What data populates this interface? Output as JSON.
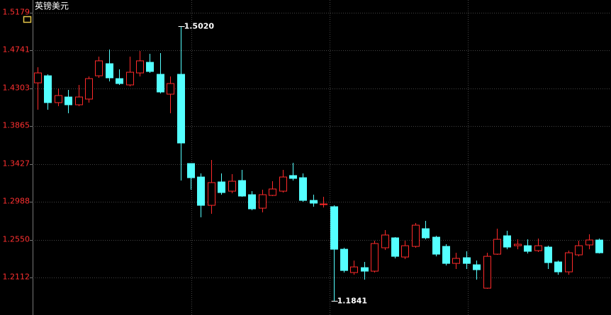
{
  "chart_data": {
    "type": "candlestick",
    "title": "英镑美元",
    "ylim": [
      1.1677,
      1.5327
    ],
    "yticks": [
      1.5179,
      1.4741,
      1.4303,
      1.3865,
      1.3427,
      1.2988,
      {
        "value": 1.255,
        "label": "1.2550"
      },
      1.2112
    ],
    "grid": true,
    "up_color": "#ff2a2a",
    "down_color": "#54ffff",
    "open": [
      1.4367,
      1.4449,
      1.4138,
      1.4203,
      1.4113,
      1.4179,
      1.4449,
      1.4589,
      1.4416,
      1.4343,
      1.4482,
      1.4605,
      1.4466,
      1.4236,
      1.4466,
      1.3432,
      1.3276,
      1.2948,
      1.3219,
      1.3112,
      1.3235,
      1.3071,
      1.2915,
      1.3063,
      1.3112,
      1.3293,
      1.3268,
      1.3005,
      1.2956,
      1.2932,
      1.2439,
      1.2169,
      1.2226,
      1.2185,
      1.2456,
      1.2571,
      1.2349,
      1.2472,
      1.2677,
      1.2579,
      1.2472,
      1.2275,
      1.2341,
      1.2259,
      1.1988,
      1.2382,
      1.2595,
      1.248,
      1.248,
      1.2423,
      1.2464,
      1.2292,
      1.2177,
      1.2374,
      1.2489,
      1.2546
    ],
    "high": [
      1.4548,
      1.4466,
      1.4302,
      1.4285,
      1.4343,
      1.4441,
      1.4671,
      1.4753,
      1.4523,
      1.4671,
      1.4736,
      1.4704,
      1.4712,
      1.4441,
      1.502,
      1.3432,
      1.3317,
      1.3473,
      1.3317,
      1.3309,
      1.3358,
      1.3112,
      1.3129,
      1.3227,
      1.3358,
      1.344,
      1.3317,
      1.3071,
      1.3047,
      1.2948,
      1.2456,
      1.2308,
      1.2292,
      1.2538,
      1.2661,
      1.2579,
      1.2538,
      1.2743,
      1.2768,
      1.2595,
      1.2497,
      1.2398,
      1.2415,
      1.2308,
      1.2398,
      1.2677,
      1.2653,
      1.2554,
      1.2554,
      1.2563,
      1.248,
      1.2308,
      1.2423,
      1.2538,
      1.2612,
      1.2563
    ],
    "low": [
      1.4056,
      1.4056,
      1.4097,
      1.4015,
      1.4097,
      1.4138,
      1.4425,
      1.4384,
      1.4343,
      1.4326,
      1.4441,
      1.4482,
      1.4244,
      1.4015,
      1.3235,
      1.3129,
      1.2809,
      1.285,
      1.3071,
      1.3088,
      1.3047,
      1.2891,
      1.2866,
      1.3055,
      1.3096,
      1.3235,
      1.2989,
      1.2932,
      1.2923,
      1.1841,
      1.2169,
      1.2144,
      1.2087,
      1.2169,
      1.2431,
      1.2333,
      1.2325,
      1.2456,
      1.2554,
      1.2357,
      1.2251,
      1.221,
      1.221,
      1.2087,
      1.198,
      1.2374,
      1.2439,
      1.2439,
      1.239,
      1.2407,
      1.221,
      1.2144,
      1.2144,
      1.2357,
      1.2439,
      1.239
    ],
    "close": [
      1.4482,
      1.4138,
      1.422,
      1.4113,
      1.4203,
      1.4416,
      1.4622,
      1.4425,
      1.4359,
      1.449,
      1.4622,
      1.4499,
      1.4261,
      1.4359,
      1.367,
      1.3268,
      1.2948,
      1.3211,
      1.3096,
      1.3227,
      1.3055,
      1.2907,
      1.3071,
      1.3137,
      1.3276,
      1.326,
      1.3005,
      1.2973,
      1.2964,
      1.2439,
      1.2193,
      1.2234,
      1.2185,
      1.2505,
      1.2604,
      1.2357,
      1.248,
      1.2718,
      1.2571,
      1.2382,
      1.2275,
      1.2333,
      1.2275,
      1.2202,
      1.2357,
      1.2554,
      1.2464,
      1.2497,
      1.2415,
      1.248,
      1.2284,
      1.2177,
      1.2398,
      1.248,
      1.2546,
      1.2398
    ],
    "annotations": [
      {
        "value": 1.502,
        "label": "1.5020"
      },
      {
        "value": 1.1841,
        "label": "1.1841"
      }
    ]
  }
}
